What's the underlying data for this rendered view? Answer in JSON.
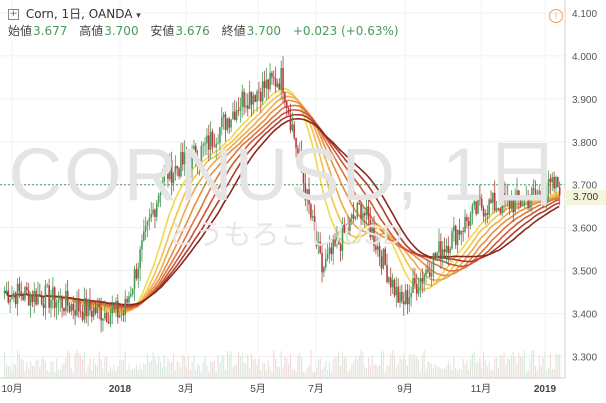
{
  "header": {
    "symbol_title": "Corn, 1日, OANDA",
    "open_label": "始値",
    "open_value": "3.677",
    "high_label": "高値",
    "high_value": "3.700",
    "low_label": "安値",
    "low_value": "3.676",
    "close_label": "終値",
    "close_value": "3.700",
    "change": "+0.023 (+0.63%)"
  },
  "icons": {
    "expand": "expand-icon",
    "dropdown": "chevron-down-icon",
    "alert": "alert-icon"
  },
  "watermark": {
    "main": "CORNUSD, 1日",
    "sub": "とうもろこし/USD"
  },
  "last_price": "3.700",
  "colors": {
    "up": "#4a9a5a",
    "down": "#b43c3c",
    "ribbon_dark": "#7a1f1a",
    "ribbon_light": "#f5d84a",
    "price_tag_bg": "#f5f5dc"
  },
  "chart_data": {
    "type": "candlestick",
    "y_ticks": [
      "3.300",
      "3.400",
      "3.500",
      "3.600",
      "3.700",
      "3.800",
      "3.900",
      "4.000",
      "4.100"
    ],
    "x_ticks": [
      "10月",
      "2018",
      "3月",
      "5月",
      "7月",
      "9月",
      "11月",
      "2019"
    ],
    "ylim": [
      3.25,
      4.13
    ],
    "price_line": 3.7,
    "close_keypoints": [
      [
        "10月",
        3.45
      ],
      [
        "11月",
        3.44
      ],
      [
        "12月",
        3.41
      ],
      [
        "2018",
        3.4
      ],
      [
        "3月",
        3.72
      ],
      [
        "4月",
        3.78
      ],
      [
        "5月",
        3.9
      ],
      [
        "6月",
        3.95
      ],
      [
        "7月",
        3.5
      ],
      [
        "8月",
        3.65
      ],
      [
        "9月",
        3.42
      ],
      [
        "10月",
        3.55
      ],
      [
        "11月",
        3.65
      ],
      [
        "12月",
        3.66
      ],
      [
        "2019",
        3.7
      ]
    ],
    "ribbon": "moving-average ribbon (red to yellow)"
  }
}
